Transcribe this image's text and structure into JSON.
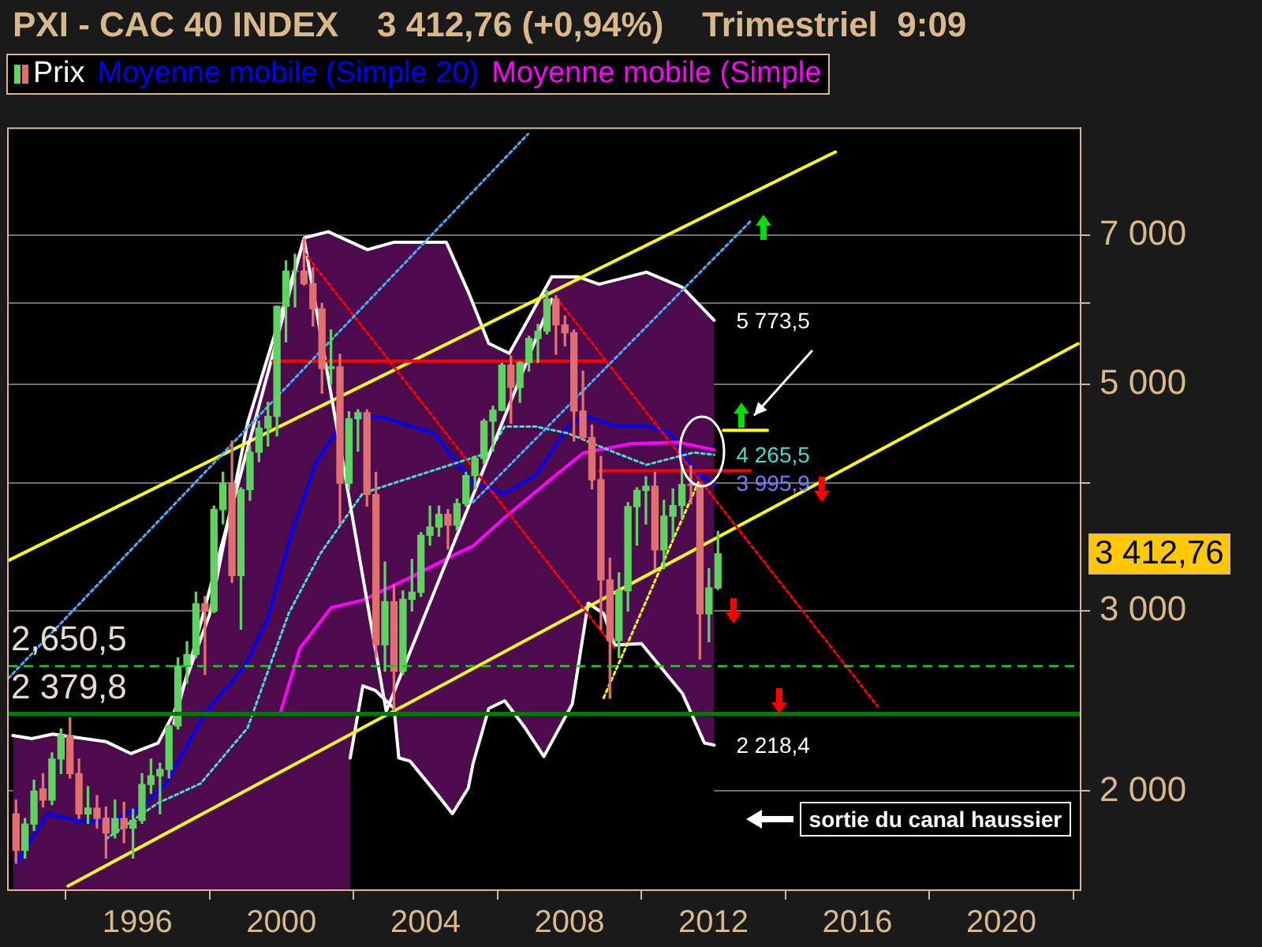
{
  "chart_data": {
    "type": "candlestick",
    "title": "PXI - CAC 40 INDEX    3 412,76 (+0,94%)    Trimestriel  9:09",
    "legend": "top left",
    "grid": "y",
    "log": true,
    "marker": "none",
    "xlim": [
      1992.4,
      2022.2
    ],
    "xticks": [
      1996,
      2000,
      2004,
      2008,
      2012,
      2016,
      2020
    ],
    "ylim": [
      1600,
      8900
    ],
    "yticks": [
      {
        "value": 2000,
        "label": "2 000"
      },
      {
        "value": 3000,
        "label": "3 000"
      },
      {
        "value": 4000,
        "label": null
      },
      {
        "value": 5000,
        "label": "5 000"
      },
      {
        "value": 6000,
        "label": null
      },
      {
        "value": 7000,
        "label": "7 000"
      }
    ],
    "series": [
      {
        "name": "Prix",
        "colors": [
          "#e07070",
          "#5fd35f",
          "#5fd35f",
          "#e07070",
          "#5fd35f",
          "#5fd35f",
          "#e07070",
          "#e07070",
          "#5fd35f",
          "#e07070",
          "#e07070",
          "#5fd35f",
          "#e07070",
          "#5fd35f",
          "#5fd35f",
          "#5fd35f",
          "#5fd35f",
          "#5fd35f",
          "#5fd35f",
          "#5fd35f",
          "#5fd35f",
          "#e07070",
          "#5fd35f",
          "#5fd35f",
          "#e07070",
          "#5fd35f",
          "#5fd35f",
          "#5fd35f",
          "#5fd35f",
          "#5fd35f",
          "#5fd35f",
          "#5fd35f",
          "#e07070",
          "#e07070",
          "#e07070",
          "#5fd35f",
          "#e07070",
          "#5fd35f",
          "#5fd35f",
          "#e07070",
          "#e07070",
          "#5fd35f",
          "#e07070",
          "#5fd35f",
          "#5fd35f",
          "#5fd35f",
          "#5fd35f",
          "#5fd35f",
          "#e07070",
          "#5fd35f",
          "#5fd35f",
          "#5fd35f",
          "#5fd35f",
          "#5fd35f",
          "#5fd35f",
          "#e07070",
          "#5fd35f",
          "#5fd35f",
          "#5fd35f",
          "#5fd35f",
          "#e07070",
          "#e07070",
          "#e07070",
          "#e07070",
          "#e07070",
          "#e07070",
          "#e07070",
          "#5fd35f",
          "#5fd35f",
          "#5fd35f",
          "#5fd35f",
          "#e07070",
          "#5fd35f",
          "#5fd35f",
          "#5fd35f",
          "#e07070",
          "#e07070",
          "#5fd35f",
          "#5fd35f"
        ],
        "value_labels": [
          null,
          null,
          null,
          null,
          null,
          null,
          null,
          null,
          null,
          null,
          null,
          null,
          null,
          null,
          null,
          null,
          null,
          null,
          null,
          null,
          null,
          null,
          null,
          null,
          null,
          null,
          null,
          null,
          null,
          null,
          null,
          null,
          null,
          null,
          null,
          null,
          null,
          null,
          null,
          null,
          null,
          null,
          null,
          null,
          null,
          null,
          null,
          null,
          null,
          null,
          null,
          null,
          null,
          null,
          null,
          null,
          null,
          null,
          null,
          null,
          null,
          null,
          null,
          null,
          null,
          null,
          null,
          null,
          null,
          null,
          null,
          null,
          null,
          null,
          null,
          null,
          null,
          null,
          "3 412,76"
        ],
        "x": [
          1992.625,
          1992.875,
          1993.125,
          1993.375,
          1993.625,
          1993.875,
          1994.125,
          1994.375,
          1994.625,
          1994.875,
          1995.125,
          1995.375,
          1995.625,
          1995.875,
          1996.125,
          1996.375,
          1996.625,
          1996.875,
          1997.125,
          1997.375,
          1997.625,
          1997.875,
          1998.125,
          1998.375,
          1998.625,
          1998.875,
          1999.125,
          1999.375,
          1999.625,
          1999.875,
          2000.125,
          2000.375,
          2000.625,
          2000.875,
          2001.125,
          2001.375,
          2001.625,
          2001.875,
          2002.125,
          2002.375,
          2002.625,
          2002.875,
          2003.125,
          2003.375,
          2003.625,
          2003.875,
          2004.125,
          2004.375,
          2004.625,
          2004.875,
          2005.125,
          2005.375,
          2005.625,
          2005.875,
          2006.125,
          2006.375,
          2006.625,
          2006.875,
          2007.125,
          2007.375,
          2007.625,
          2007.875,
          2008.125,
          2008.375,
          2008.625,
          2008.875,
          2009.125,
          2009.375,
          2009.625,
          2009.875,
          2010.125,
          2010.375,
          2010.625,
          2010.875,
          2011.125,
          2011.375,
          2011.625,
          2011.875,
          2012.125
        ],
        "ohlc": [
          [
            1900,
            1960,
            1700,
            1750
          ],
          [
            1750,
            1880,
            1720,
            1857
          ],
          [
            1857,
            2050,
            1830,
            2000
          ],
          [
            2010,
            2080,
            1930,
            1960
          ],
          [
            1960,
            2180,
            1940,
            2150
          ],
          [
            2150,
            2300,
            2080,
            2268
          ],
          [
            2268,
            2360,
            2060,
            2080
          ],
          [
            2080,
            2150,
            1880,
            1900
          ],
          [
            1900,
            2020,
            1860,
            1925
          ],
          [
            1925,
            1980,
            1840,
            1881
          ],
          [
            1881,
            1930,
            1720,
            1820
          ],
          [
            1820,
            1960,
            1800,
            1880
          ],
          [
            1880,
            1950,
            1780,
            1840
          ],
          [
            1840,
            1920,
            1720,
            1872
          ],
          [
            1872,
            2080,
            1860,
            2030
          ],
          [
            2030,
            2150,
            1990,
            2070
          ],
          [
            2070,
            2130,
            1900,
            2100
          ],
          [
            2100,
            2320,
            2060,
            2316
          ],
          [
            2316,
            2700,
            2300,
            2650
          ],
          [
            2650,
            2800,
            2550,
            2720
          ],
          [
            2720,
            3130,
            2700,
            3050
          ],
          [
            3050,
            3100,
            2600,
            2999
          ],
          [
            2999,
            3800,
            2990,
            3770
          ],
          [
            3770,
            4100,
            3650,
            4000
          ],
          [
            4000,
            4400,
            3200,
            3250
          ],
          [
            3250,
            3960,
            2880,
            3943
          ],
          [
            3943,
            4350,
            3850,
            4290
          ],
          [
            4290,
            4600,
            4200,
            4530
          ],
          [
            4530,
            4800,
            4350,
            4650
          ],
          [
            4650,
            5960,
            4450,
            5958
          ],
          [
            5958,
            6600,
            5500,
            6450
          ],
          [
            6450,
            6700,
            5950,
            6450
          ],
          [
            6450,
            6944,
            6250,
            6270
          ],
          [
            6270,
            6500,
            5700,
            5926
          ],
          [
            5926,
            5999,
            4900,
            5180
          ],
          [
            5180,
            5650,
            5000,
            5200
          ],
          [
            5200,
            5350,
            3650,
            4000
          ],
          [
            4000,
            4700,
            3950,
            4625
          ],
          [
            4625,
            4720,
            4300,
            4690
          ],
          [
            4690,
            4720,
            3800,
            3900
          ],
          [
            3900,
            4100,
            2700,
            2780
          ],
          [
            2780,
            3350,
            2620,
            3064
          ],
          [
            3064,
            3180,
            2401,
            2620
          ],
          [
            2620,
            3140,
            2600,
            3080
          ],
          [
            3080,
            3370,
            3000,
            3130
          ],
          [
            3130,
            3580,
            3100,
            3558
          ],
          [
            3558,
            3800,
            3480,
            3625
          ],
          [
            3625,
            3800,
            3550,
            3730
          ],
          [
            3730,
            3770,
            3450,
            3640
          ],
          [
            3640,
            3860,
            3600,
            3821
          ],
          [
            3821,
            4100,
            3800,
            4070
          ],
          [
            4070,
            4250,
            3950,
            4230
          ],
          [
            4230,
            4620,
            4180,
            4600
          ],
          [
            4600,
            4760,
            4300,
            4715
          ],
          [
            4715,
            5240,
            4710,
            5220
          ],
          [
            5220,
            5330,
            4580,
            4965
          ],
          [
            4965,
            5260,
            4800,
            5250
          ],
          [
            5250,
            5570,
            5150,
            5542
          ],
          [
            5542,
            5720,
            5250,
            5634
          ],
          [
            5634,
            6168,
            5600,
            6055
          ],
          [
            6055,
            6100,
            5350,
            5715
          ],
          [
            5715,
            5830,
            5450,
            5614
          ],
          [
            5614,
            5650,
            4400,
            4707
          ],
          [
            4707,
            5150,
            4420,
            4434
          ],
          [
            4434,
            4560,
            3950,
            4032
          ],
          [
            4032,
            4250,
            2880,
            3218
          ],
          [
            3218,
            3380,
            2465,
            2807
          ],
          [
            2807,
            3270,
            2700,
            3140
          ],
          [
            3140,
            3830,
            3000,
            3795
          ],
          [
            3795,
            3960,
            3480,
            3936
          ],
          [
            3936,
            4060,
            3650,
            3974
          ],
          [
            3974,
            4100,
            3300,
            3443
          ],
          [
            3443,
            3850,
            3300,
            3715
          ],
          [
            3715,
            3950,
            3530,
            3805
          ],
          [
            3805,
            4170,
            3700,
            3989
          ],
          [
            3989,
            4160,
            3820,
            3982
          ],
          [
            3982,
            4000,
            2693,
            2981
          ],
          [
            2981,
            3300,
            2800,
            3160
          ],
          [
            3160,
            3590,
            3150,
            3412.76
          ]
        ]
      },
      {
        "name": "Moyenne mobile (Simple 20)",
        "type": "line",
        "color": "#0000ff",
        "x": [
          1992.63,
          1993.51,
          1994.38,
          1995.26,
          1996.13,
          1996.79,
          1997.88,
          1998.98,
          1999.63,
          2000.29,
          2000.95,
          2001.6,
          2002.26,
          2002.91,
          2003.57,
          2004.23,
          2004.67,
          2005.32,
          2006.2,
          2007.07,
          2007.95,
          2008.39,
          2009.26,
          2010.14,
          2010.79,
          2011.45,
          2012.02
        ],
        "values": [
          1700,
          1901,
          1869,
          1869,
          1933,
          2034,
          2385,
          2649,
          2952,
          3581,
          4184,
          4539,
          4663,
          4632,
          4554,
          4478,
          4285,
          4004,
          3910,
          4073,
          4539,
          4663,
          4554,
          4554,
          4478,
          4115,
          3995.9
        ],
        "value_labels": [
          null,
          null,
          null,
          null,
          null,
          null,
          null,
          null,
          null,
          null,
          null,
          null,
          null,
          null,
          null,
          null,
          null,
          null,
          null,
          null,
          null,
          null,
          null,
          null,
          null,
          null,
          "3 995,9"
        ]
      },
      {
        "name": "Moyenne mobile (Simple",
        "type": "line",
        "color": "#ff00ff",
        "x": [
          1999.98,
          2000.51,
          2001.38,
          2002.26,
          2003.57,
          2004.88,
          2005.32,
          2006.2,
          2007.51,
          2008.39,
          2009.7,
          2011.01,
          2012.02
        ],
        "values": [
          2393,
          2759,
          3023,
          3075,
          3235,
          3415,
          3473,
          3704,
          4045,
          4285,
          4373,
          4388,
          4314
        ]
      },
      {
        "type": "area",
        "color": "#4d0a4d",
        "x": [
          1992.54,
          1993.07,
          1993.64,
          1995.12,
          1995.82,
          1996.57,
          1997.01,
          1998.01,
          1999.06,
          2000.64,
          2001.3,
          2002.39,
          2003.13,
          2004.58,
          2005.19,
          2005.76,
          2006.33,
          2007.51,
          2008.25,
          2008.82,
          2010.14,
          2011.14,
          2012.02
        ],
        "values": [
          2267,
          2251,
          2274,
          2236,
          2176,
          2228,
          2385,
          2982,
          4585,
          6954,
          7049,
          6769,
          6884,
          6884,
          6156,
          5480,
          5360,
          6368,
          6368,
          6262,
          6435,
          6218,
          5773.5
        ],
        "value_labels": [
          null,
          null,
          null,
          null,
          null,
          null,
          null,
          null,
          null,
          null,
          null,
          null,
          null,
          null,
          null,
          null,
          null,
          null,
          null,
          null,
          null,
          null,
          "5 773,5"
        ]
      },
      {
        "type": "area",
        "color": "#000000",
        "x": [
          2001.91,
          2002.26,
          2002.61,
          2003.13,
          2003.26,
          2003.57,
          2004.32,
          2004.75,
          2005.19,
          2005.32,
          2005.76,
          2006.2,
          2006.77,
          2007.29,
          2008.08,
          2008.52,
          2008.95,
          2009.26,
          2010.0,
          2011.14,
          2011.75,
          2012.02
        ],
        "values": [
          2155,
          2535,
          2509,
          2409,
          2155,
          2140,
          1987,
          1901,
          2014,
          2126,
          2409,
          2451,
          2306,
          2162,
          2434,
          3054,
          2982,
          2778,
          2788,
          2492,
          2229,
          2218.4
        ],
        "value_labels": [
          null,
          null,
          null,
          null,
          null,
          null,
          null,
          null,
          null,
          null,
          null,
          null,
          null,
          null,
          null,
          null,
          null,
          null,
          null,
          null,
          null,
          "2 218,4"
        ]
      },
      {
        "type": "line",
        "color": "#40e0d0",
        "line_style": "dotted",
        "x": [
          1995.12,
          1996.57,
          1997.75,
          1999.06,
          2000.2,
          2001.08,
          2002.26,
          2003.57,
          2004.88,
          2005.76,
          2006.2,
          2007.07,
          2007.95,
          2009.26,
          2010.14,
          2011.45,
          2012.02
        ],
        "values": [
          1795,
          1947,
          2034,
          2306,
          2984,
          3414,
          3912,
          4049,
          4190,
          4287,
          4545,
          4545,
          4478,
          4287,
          4170,
          4287,
          4265.5
        ],
        "value_labels": [
          null,
          null,
          null,
          null,
          null,
          null,
          null,
          null,
          null,
          null,
          null,
          null,
          null,
          null,
          null,
          null,
          "4 265,5"
        ]
      },
      {
        "type": "line",
        "color": "#ffff00",
        "x": [
          1992.41,
          2015.39
        ],
        "values": [
          3361,
          8437
        ]
      },
      {
        "type": "line",
        "color": "#ffff00",
        "x": [
          1994.07,
          2022.13
        ],
        "values": [
          1615,
          5477
        ]
      },
      {
        "type": "line",
        "color": "#ffff00",
        "line_style": "dotted",
        "x": [
          2008.95,
          2011.58
        ],
        "values": [
          2467,
          4010
        ]
      },
      {
        "type": "line",
        "color": "#ffff00",
        "x": [
          2012.28,
          2013.5
        ],
        "values": [
          4508,
          4508
        ]
      },
      {
        "type": "line",
        "color": "#ffffff",
        "x": [
          1997.01,
          2000.625,
          2002.91,
          2007.51
        ],
        "values": [
          2329,
          6944,
          2393,
          6053
        ]
      },
      {
        "type": "line",
        "color": "#ff0000",
        "x": [
          1999.76,
          2008.95
        ],
        "values": [
          5268,
          5268
        ]
      },
      {
        "type": "line",
        "color": "#ff0000",
        "x": [
          2008.82,
          2013.02
        ],
        "values": [
          4115,
          4115
        ]
      },
      {
        "type": "line",
        "color": "#ff0000",
        "line_style": "dotted",
        "x": [
          2000.64,
          2009.26
        ],
        "values": [
          6720,
          2759
        ]
      },
      {
        "type": "line",
        "color": "#ff0000",
        "line_style": "dotted",
        "x": [
          2007.64,
          2016.57
        ],
        "values": [
          6073,
          2419
        ]
      },
      {
        "type": "line",
        "color": "#40b0ff",
        "line_style": "dotted",
        "x": [
          1992.41,
          2006.85
        ],
        "values": [
          2578,
          8785
        ]
      },
      {
        "type": "line",
        "color": "#40b0ff",
        "line_style": "dotted",
        "x": [
          2005.32,
          2013.07
        ],
        "values": [
          3832,
          7241
        ]
      }
    ],
    "ref_lines": [
      {
        "axis": "y",
        "value": 2650.5,
        "label": "2,650,5",
        "color": "#00e000",
        "line_style": "dashed"
      },
      {
        "axis": "y",
        "value": 2379.8,
        "label": "2 379,8",
        "color": "#007a00",
        "line_style": "solid"
      }
    ],
    "annotations": [
      "sortie du canal haussier"
    ]
  }
}
